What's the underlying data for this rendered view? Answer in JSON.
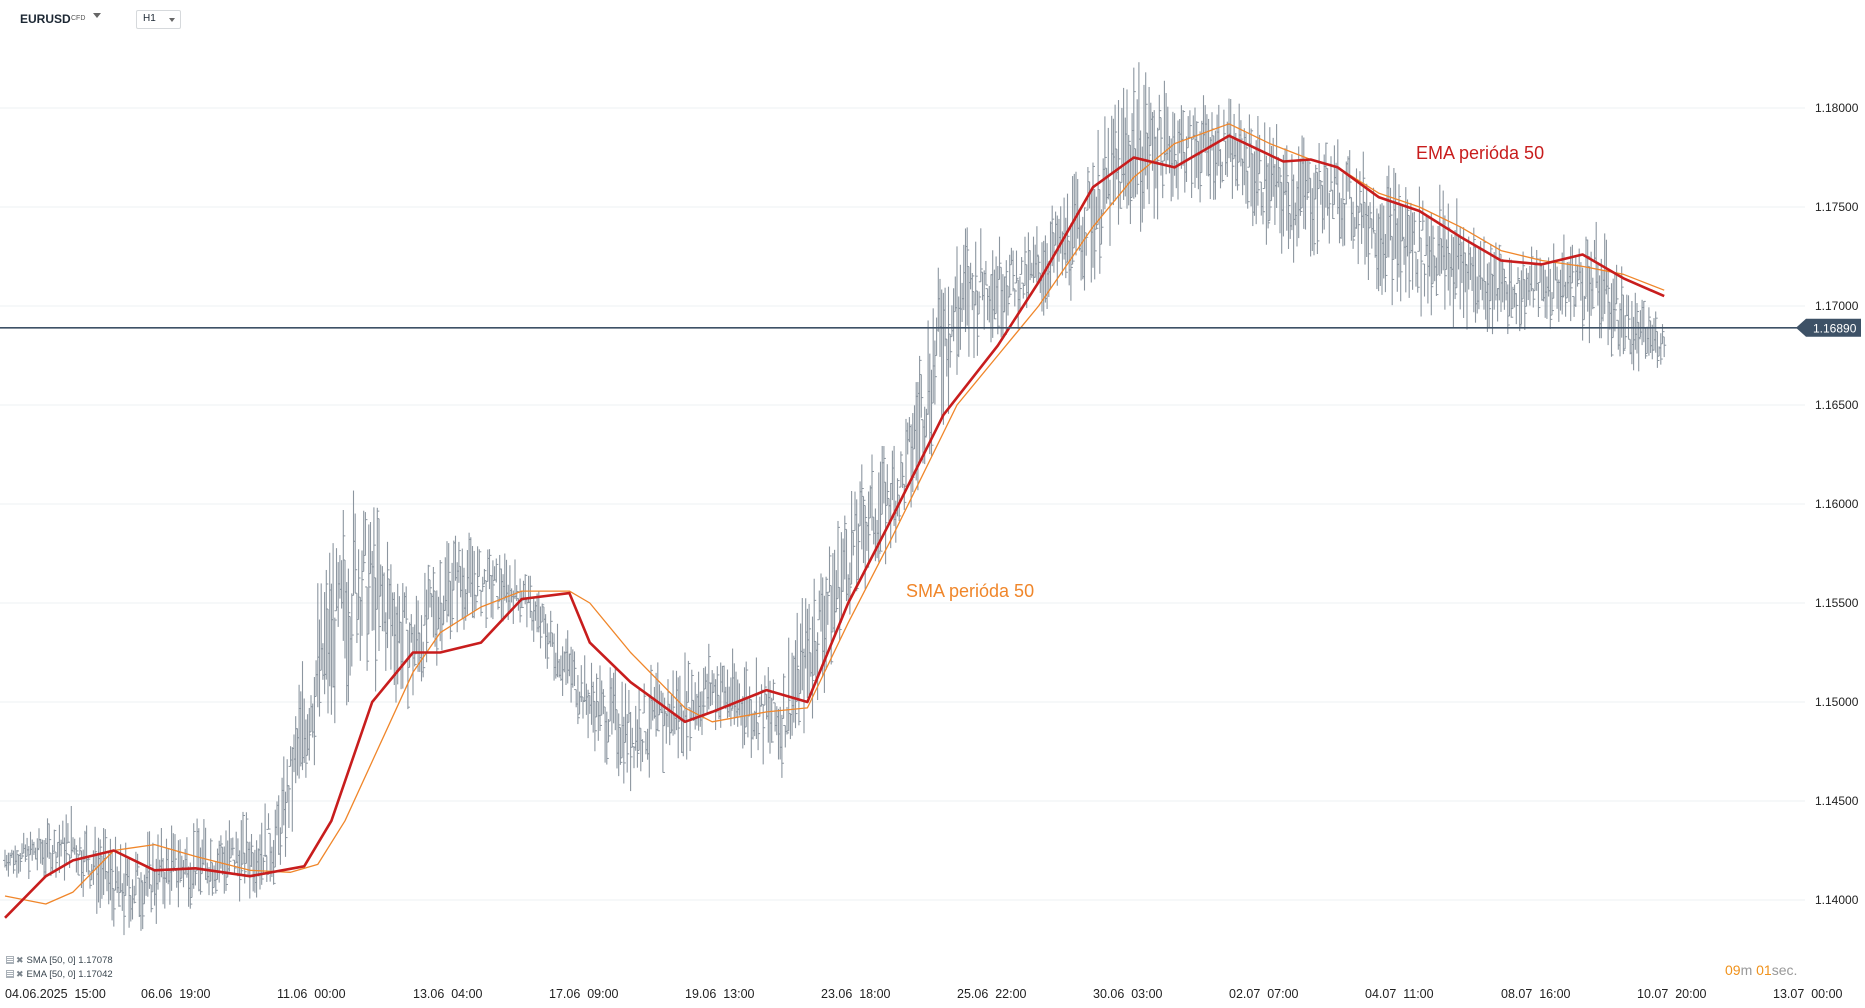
{
  "header": {
    "symbol": "EURUSD",
    "symbol_type": "CFD",
    "timeframe": "H1"
  },
  "legend": [
    {
      "label": "SMA [50, 0] 1.17078"
    },
    {
      "label": "EMA [50, 0] 1.17042"
    }
  ],
  "timer": {
    "minutes": "09",
    "m_suffix": "m",
    "seconds": "01",
    "s_suffix": "sec."
  },
  "colors": {
    "candles": "#8c96a0",
    "ema": "#c81d1d",
    "sma": "#f0862a",
    "price_line": "#3d5166",
    "grid": "#edf0f3",
    "axis_text": "#222222"
  },
  "chart_data": {
    "type": "line",
    "title": "",
    "xlabel": "",
    "ylabel": "",
    "ylim": [
      1.1365,
      1.184
    ],
    "y_ticks": [
      "1.18000",
      "1.17500",
      "1.17000",
      "1.16500",
      "1.16000",
      "1.15500",
      "1.15000",
      "1.14500",
      "1.14000"
    ],
    "x_labels": [
      "04.06.2025  15:00",
      "06.06  19:00",
      "11.06  00:00",
      "13.06  04:00",
      "17.06  09:00",
      "19.06  13:00",
      "23.06  18:00",
      "25.06  22:00",
      "30.06  03:00",
      "02.07  07:00",
      "04.07  11:00",
      "08.07  16:00",
      "10.07  20:00",
      "13.07  00:00"
    ],
    "x_range_index": [
      0,
      13.7
    ],
    "current_price": "1.16890",
    "current_price_value": 1.1689,
    "price_range": {
      "x": [
        0,
        0.5,
        0.85,
        1.3,
        1.8,
        2.0,
        2.3,
        2.6,
        3.0,
        3.3,
        3.8,
        4.3,
        4.6,
        5.0,
        5.2,
        5.7,
        6.0,
        6.3,
        6.6,
        6.9,
        7.2,
        7.5,
        7.9,
        8.3,
        8.6,
        9.0,
        9.4,
        9.8,
        10.2,
        10.6,
        11.0,
        11.3,
        11.7,
        12.0,
        12.2
      ],
      "low": [
        1.1412,
        1.1408,
        1.1378,
        1.1395,
        1.14,
        1.1405,
        1.147,
        1.151,
        1.1495,
        1.1535,
        1.154,
        1.1478,
        1.1455,
        1.147,
        1.1485,
        1.146,
        1.15,
        1.1555,
        1.158,
        1.164,
        1.168,
        1.169,
        1.1705,
        1.1735,
        1.175,
        1.1755,
        1.172,
        1.173,
        1.17,
        1.169,
        1.1685,
        1.169,
        1.168,
        1.1665,
        1.167
      ],
      "high": [
        1.143,
        1.1448,
        1.143,
        1.144,
        1.1445,
        1.1455,
        1.156,
        1.162,
        1.156,
        1.159,
        1.157,
        1.152,
        1.1515,
        1.1525,
        1.153,
        1.152,
        1.158,
        1.162,
        1.164,
        1.174,
        1.1745,
        1.1735,
        1.177,
        1.1825,
        1.181,
        1.1805,
        1.179,
        1.1785,
        1.177,
        1.176,
        1.173,
        1.173,
        1.1745,
        1.1705,
        1.1695
      ]
    },
    "series": [
      {
        "name": "EMA perióda 50",
        "x": [
          0,
          0.3,
          0.5,
          0.8,
          1.1,
          1.4,
          1.8,
          2.2,
          2.4,
          2.7,
          3.0,
          3.2,
          3.5,
          3.8,
          4.15,
          4.3,
          4.6,
          5.0,
          5.2,
          5.6,
          5.9,
          6.2,
          6.5,
          6.9,
          7.3,
          7.6,
          8.0,
          8.3,
          8.6,
          9.0,
          9.4,
          9.6,
          9.8,
          10.1,
          10.4,
          10.7,
          11.0,
          11.3,
          11.6,
          11.9,
          12.2
        ],
        "values": [
          1.1391,
          1.1412,
          1.142,
          1.1425,
          1.1415,
          1.1416,
          1.1412,
          1.1417,
          1.144,
          1.15,
          1.1525,
          1.1525,
          1.153,
          1.1552,
          1.1555,
          1.153,
          1.151,
          1.149,
          1.1495,
          1.1506,
          1.15,
          1.155,
          1.159,
          1.1645,
          1.168,
          1.1712,
          1.176,
          1.1775,
          1.177,
          1.1786,
          1.1773,
          1.1774,
          1.177,
          1.1755,
          1.1748,
          1.1735,
          1.1723,
          1.1721,
          1.1726,
          1.1714,
          1.1705
        ]
      },
      {
        "name": "SMA perióda 50",
        "x": [
          0,
          0.3,
          0.5,
          0.8,
          1.1,
          1.4,
          1.8,
          2.1,
          2.3,
          2.5,
          2.7,
          3.0,
          3.2,
          3.5,
          3.8,
          4.15,
          4.3,
          4.6,
          5.0,
          5.2,
          5.6,
          5.9,
          6.2,
          6.5,
          6.7,
          7.0,
          7.3,
          7.6,
          8.0,
          8.3,
          8.6,
          9.0,
          9.3,
          9.6,
          9.8,
          10.1,
          10.4,
          10.7,
          11.0,
          11.3,
          11.6,
          11.9,
          12.2
        ],
        "values": [
          1.1402,
          1.1398,
          1.1404,
          1.1425,
          1.1428,
          1.1422,
          1.1415,
          1.1414,
          1.1418,
          1.144,
          1.147,
          1.1515,
          1.1535,
          1.1548,
          1.1556,
          1.1556,
          1.155,
          1.1525,
          1.1497,
          1.149,
          1.1495,
          1.1497,
          1.154,
          1.158,
          1.1608,
          1.165,
          1.1675,
          1.17,
          1.174,
          1.1765,
          1.1782,
          1.1792,
          1.1782,
          1.1774,
          1.177,
          1.1757,
          1.175,
          1.174,
          1.1728,
          1.1723,
          1.172,
          1.1716,
          1.1708
        ]
      }
    ]
  }
}
